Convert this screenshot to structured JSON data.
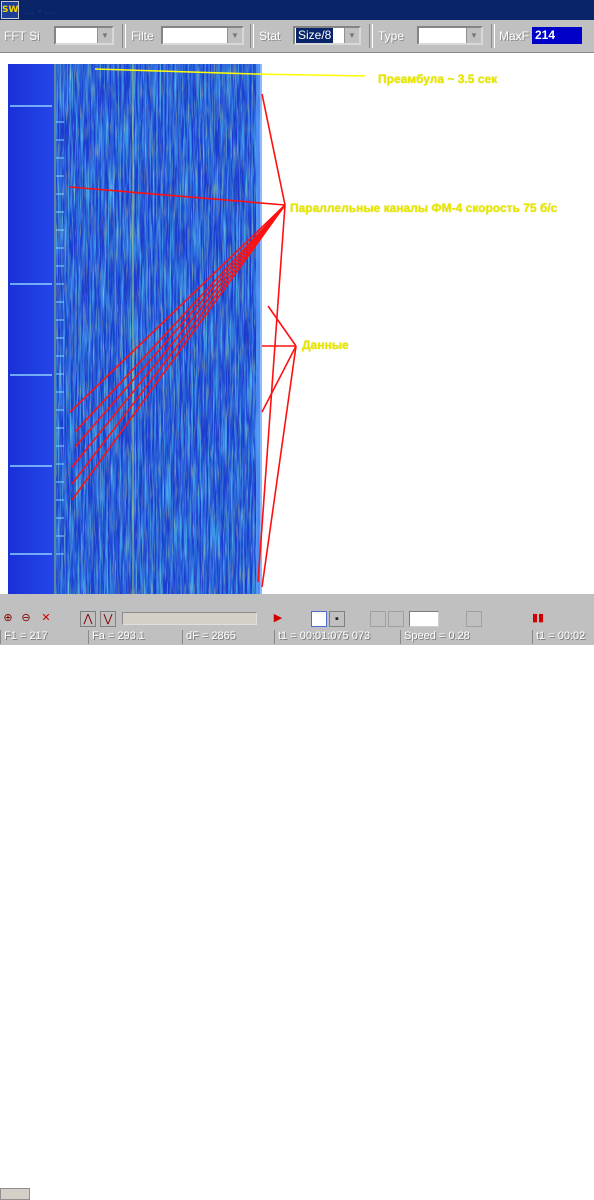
{
  "title": {
    "logo_text": "SW",
    "text": "... - ..."
  },
  "toolbar": {
    "fft_label": "FFT Si",
    "filter_label": "Filte",
    "stat_label": "Stat",
    "stat_value": "Size/8",
    "type_label": "Type",
    "max_label": "MaxF",
    "readout_value": "214"
  },
  "annotations": {
    "preamble": "Преамбула ~ 3.5 сек",
    "parallel": "Параллельные каналы ФМ-4 скорость 75 б/с",
    "data": "Данные"
  },
  "statusbar": {
    "cells": [
      "F1 = 217",
      "Fa = 293.1",
      "dF = 2865",
      "t1 = 00:01:075 073",
      "Speed = 0.28",
      "t1 = 00:02"
    ]
  },
  "icons": {
    "zoom_in": "zoom-in-icon",
    "zoom_out": "zoom-out-icon",
    "cross": "cross-icon",
    "record": "record-icon",
    "play": "play-icon"
  },
  "colors": {
    "spectrum_bg": "#1a3fd8",
    "annotation_text": "#e8e800",
    "annotation_lines": "#ff1010",
    "toolbar": "#c0c0c0"
  }
}
